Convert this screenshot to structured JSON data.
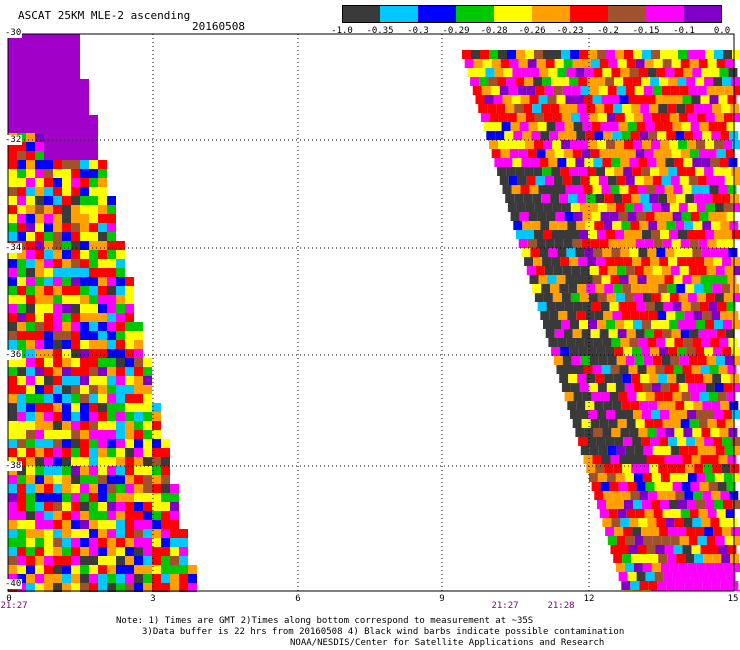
{
  "header": {
    "title": "ASCAT 25KM MLE-2 ascending",
    "date": "20160508"
  },
  "colorbar": {
    "colors": [
      "#3a3a3a",
      "#00c8ff",
      "#0000ff",
      "#00c800",
      "#ffff00",
      "#ffa000",
      "#ff0000",
      "#a0522d",
      "#ff00ff",
      "#8000c8"
    ],
    "labels": [
      "-1.0",
      "-0.35",
      "-0.3",
      "-0.29",
      "-0.28",
      "-0.26",
      "-0.23",
      "-0.2",
      "-0.15",
      "-0.1",
      "0.0"
    ]
  },
  "axes": {
    "y_labels": [
      "-30",
      "-32",
      "-34",
      "-36",
      "-38",
      "-40"
    ],
    "x_labels": [
      "0",
      "3",
      "6",
      "9",
      "12",
      "15"
    ],
    "time_labels": [
      "21:27",
      "21:27",
      "21:28"
    ],
    "grid": "dotted"
  },
  "notes": {
    "line1": "Note: 1) Times are GMT 2)Times along bottom correspond to measurement at ~35S",
    "line2": "3)Data buffer is 22 hrs from 20160508 4) Black wind barbs indicate possible contamination",
    "line3": "NOAA/NESDIS/Center for Satellite Applications and Research"
  }
}
